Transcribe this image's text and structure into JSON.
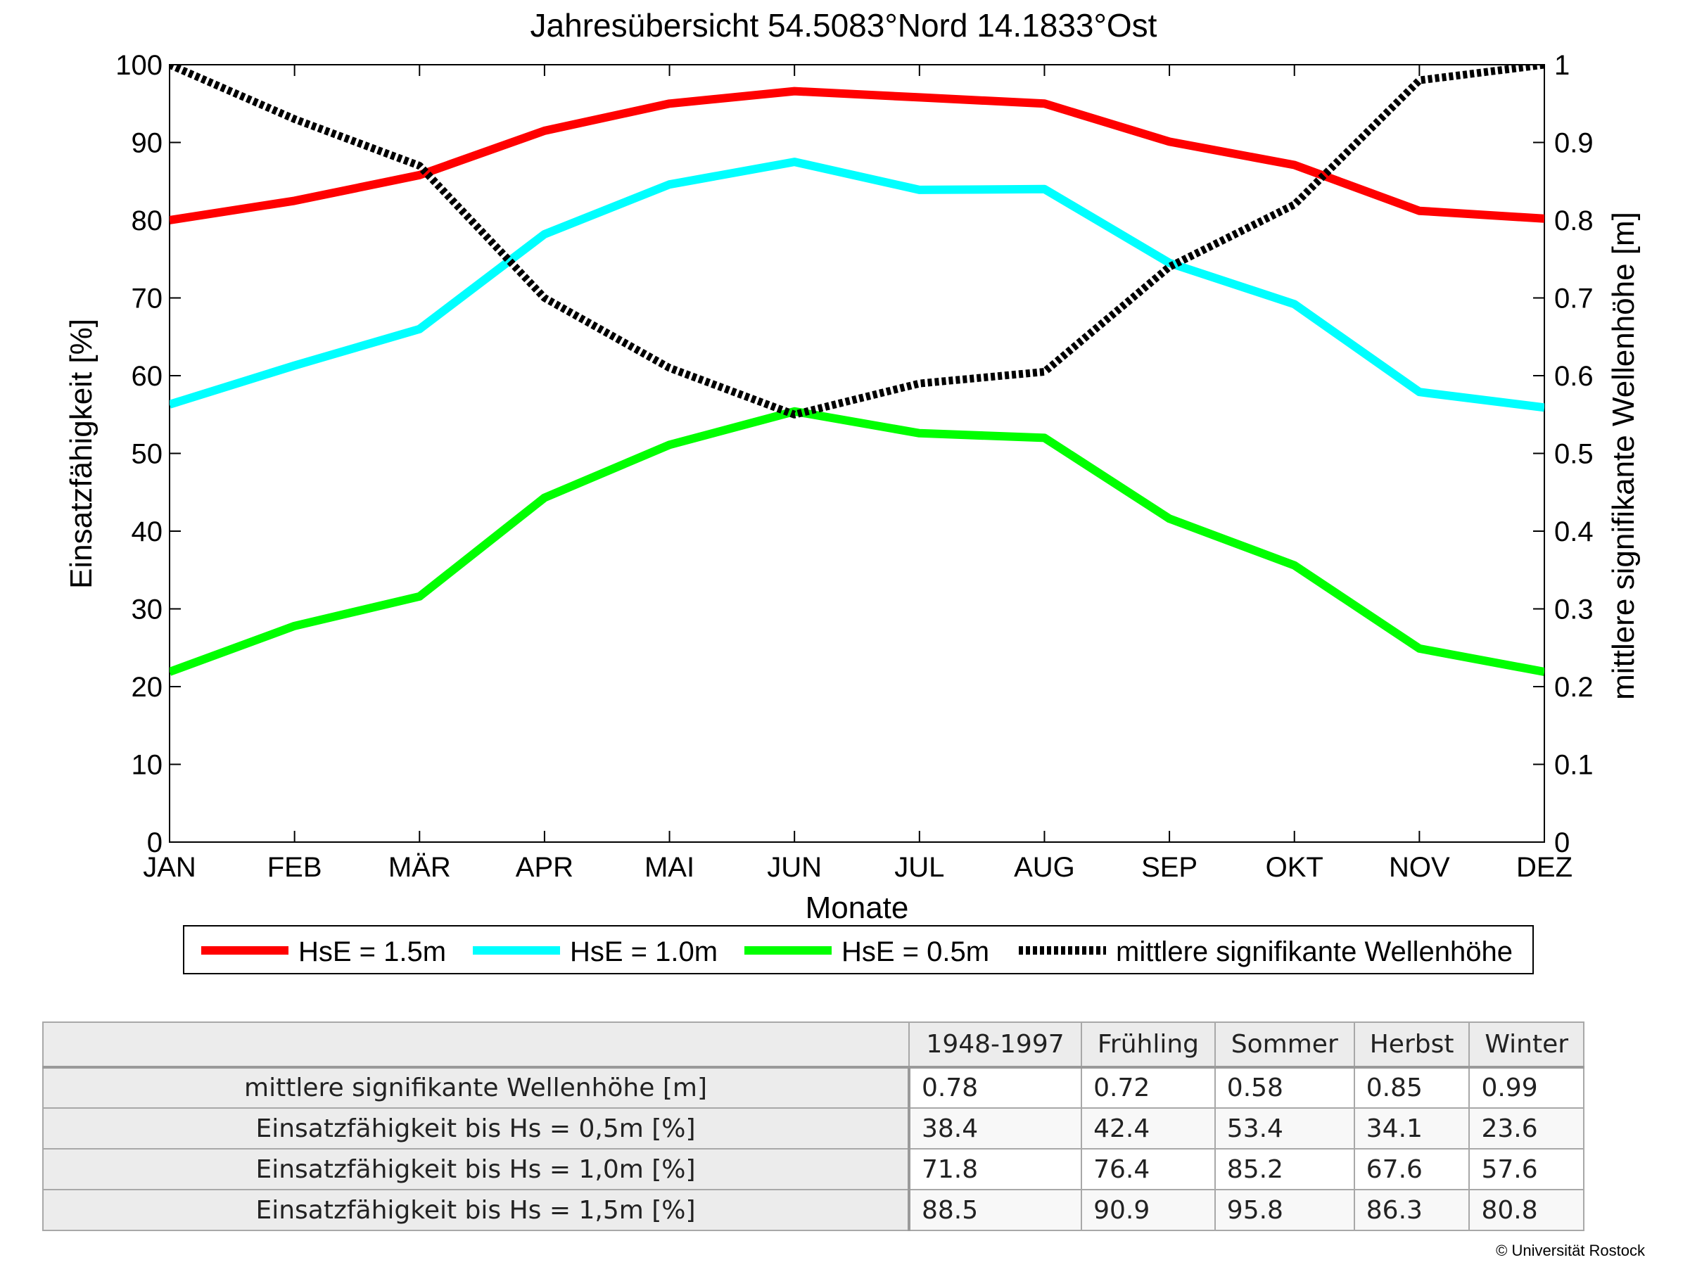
{
  "chart_data": {
    "type": "line",
    "title": "Jahresübersicht  54.5083°Nord  14.1833°Ost",
    "xlabel": "Monate",
    "ylabel": "Einsatzfähigkeit [%]",
    "y2label": "mittlere signifikante Wellenhöhe [m]",
    "categories": [
      "JAN",
      "FEB",
      "MÄR",
      "APR",
      "MAI",
      "JUN",
      "JUL",
      "AUG",
      "SEP",
      "OKT",
      "NOV",
      "DEZ"
    ],
    "ylim": [
      0,
      100
    ],
    "y2lim": [
      0,
      1
    ],
    "yticks": [
      "0",
      "10",
      "20",
      "30",
      "40",
      "50",
      "60",
      "70",
      "80",
      "90",
      "100"
    ],
    "y2ticks": [
      "0",
      "0.1",
      "0.2",
      "0.3",
      "0.4",
      "0.5",
      "0.6",
      "0.7",
      "0.8",
      "0.9",
      "1"
    ],
    "grid": false,
    "legend_position": "bottom",
    "series": [
      {
        "name": "HsE = 1.5m",
        "axis": "left",
        "color": "#ff0000",
        "style": "solid",
        "values": [
          80,
          82.5,
          85.8,
          91.5,
          95,
          96.6,
          95.8,
          95,
          90.1,
          87.1,
          81.2,
          80.2
        ]
      },
      {
        "name": "HsE = 1.0m",
        "axis": "left",
        "color": "#00ffff",
        "style": "solid",
        "values": [
          56.3,
          61.3,
          66,
          78.2,
          84.6,
          87.5,
          83.9,
          84,
          74.5,
          69.2,
          57.9,
          55.9
        ]
      },
      {
        "name": "HsE = 0.5m",
        "axis": "left",
        "color": "#00ff00",
        "style": "solid",
        "values": [
          21.9,
          27.8,
          31.6,
          44.3,
          51.1,
          55.4,
          52.6,
          52,
          41.6,
          35.6,
          24.9,
          21.9
        ]
      },
      {
        "name": "mittlere signifikante Wellenhöhe",
        "axis": "right",
        "color": "#000000",
        "style": "dotted",
        "values": [
          1.0,
          0.93,
          0.87,
          0.7,
          0.61,
          0.55,
          0.59,
          0.605,
          0.74,
          0.82,
          0.98,
          1.0
        ]
      }
    ]
  },
  "table": {
    "columns": [
      "1948-1997",
      "Frühling",
      "Sommer",
      "Herbst",
      "Winter"
    ],
    "rows": [
      {
        "label": "mittlere signifikante Wellenhöhe [m]",
        "values": [
          "0.78",
          "0.72",
          "0.58",
          "0.85",
          "0.99"
        ]
      },
      {
        "label": "Einsatzfähigkeit bis Hs = 0,5m [%]",
        "values": [
          "38.4",
          "42.4",
          "53.4",
          "34.1",
          "23.6"
        ]
      },
      {
        "label": "Einsatzfähigkeit bis Hs = 1,0m [%]",
        "values": [
          "71.8",
          "76.4",
          "85.2",
          "67.6",
          "57.6"
        ]
      },
      {
        "label": "Einsatzfähigkeit bis Hs = 1,5m [%]",
        "values": [
          "88.5",
          "90.9",
          "95.8",
          "86.3",
          "80.8"
        ]
      }
    ]
  },
  "copyright": "© Universität Rostock"
}
